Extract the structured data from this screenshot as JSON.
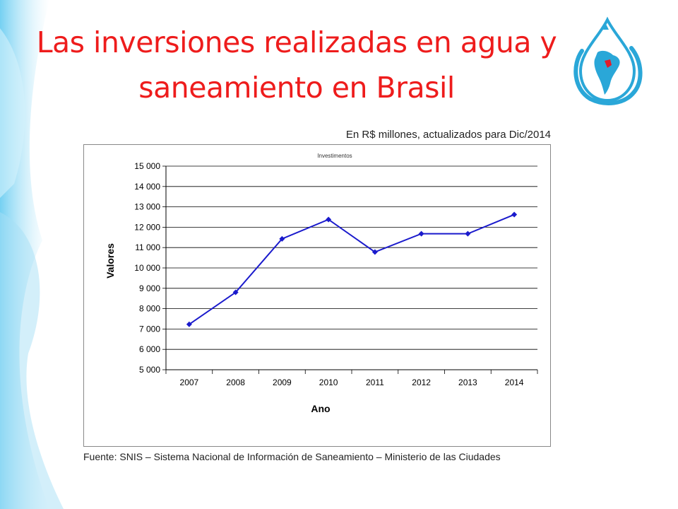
{
  "slide": {
    "title_line1": "Las inversiones realizadas en agua y",
    "title_line2": "saneamiento en Brasil",
    "subtitle": "En R$ millones, actualizados para Dic/2014",
    "source": "Fuente: SNIS – Sistema Nacional de Información de Saneamiento – Ministerio de las Ciudades"
  },
  "colors": {
    "title": "#ee1c1c",
    "series": "#1a1acc",
    "logo_blue": "#2aa7d8",
    "background_accent": "#9fdcf3"
  },
  "chart_data": {
    "type": "line",
    "title": "Investimentos",
    "xlabel": "Ano",
    "ylabel": "Valores",
    "categories": [
      "2007",
      "2008",
      "2009",
      "2010",
      "2011",
      "2012",
      "2013",
      "2014"
    ],
    "series": [
      {
        "values": [
          7230,
          8800,
          11430,
          12380,
          10780,
          11680,
          11680,
          12620
        ]
      }
    ],
    "ylim": [
      5000,
      15000
    ],
    "yticks": [
      5000,
      6000,
      7000,
      8000,
      9000,
      10000,
      11000,
      12000,
      13000,
      14000,
      15000
    ],
    "ytick_labels": [
      "5 000",
      "6 000",
      "7 000",
      "8 000",
      "9 000",
      "10 000",
      "11 000",
      "12 000",
      "13 000",
      "14 000",
      "15 000"
    ],
    "grid": true,
    "marker": "diamond"
  }
}
